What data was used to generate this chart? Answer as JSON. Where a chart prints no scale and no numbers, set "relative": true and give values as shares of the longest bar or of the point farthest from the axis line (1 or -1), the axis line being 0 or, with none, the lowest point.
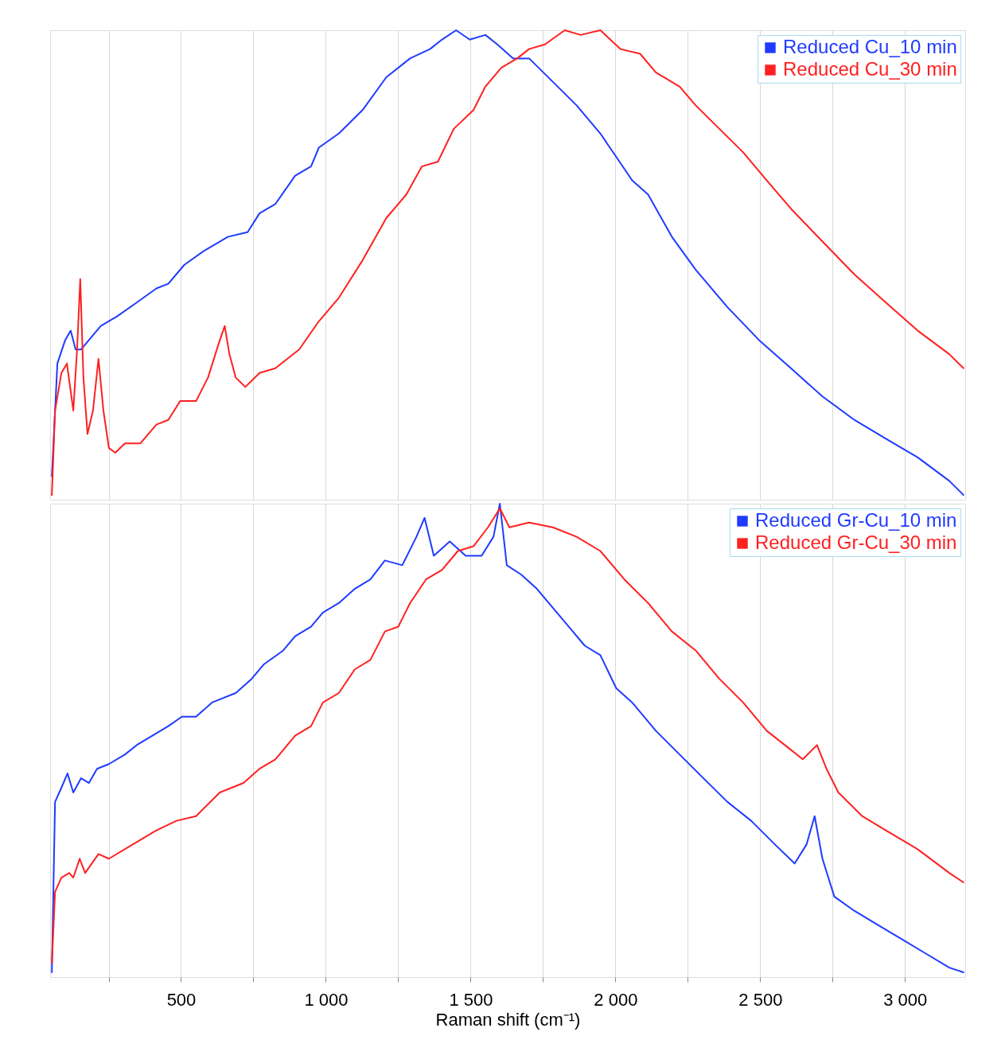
{
  "chart_data": [
    {
      "type": "line",
      "relative": true,
      "xlim": [
        48,
        3208
      ],
      "tick_labels": false,
      "grid": "x",
      "legend": "top right",
      "xticks": [
        250,
        500,
        750,
        1000,
        1250,
        1500,
        1750,
        2000,
        2250,
        2500,
        2750,
        3000
      ],
      "series": [
        {
          "name": "Reduced Cu_10 min",
          "color": "#1f3bff",
          "x": [
            54,
            73,
            100,
            119,
            136,
            155,
            182,
            223,
            278,
            347,
            415,
            456,
            511,
            579,
            662,
            730,
            771,
            826,
            894,
            949,
            976,
            1045,
            1127,
            1209,
            1291,
            1360,
            1401,
            1450,
            1497,
            1551,
            1592,
            1647,
            1702,
            1784,
            1866,
            1948,
            2003,
            2058,
            2113,
            2195,
            2277,
            2387,
            2496,
            2606,
            2715,
            2825,
            2934,
            3044,
            3153,
            3202
          ],
          "values": [
            0.05,
            0.29,
            0.34,
            0.36,
            0.32,
            0.32,
            0.34,
            0.37,
            0.39,
            0.42,
            0.45,
            0.46,
            0.5,
            0.53,
            0.56,
            0.57,
            0.61,
            0.63,
            0.69,
            0.71,
            0.75,
            0.78,
            0.83,
            0.9,
            0.94,
            0.96,
            0.98,
            1.0,
            0.98,
            0.99,
            0.97,
            0.94,
            0.94,
            0.89,
            0.84,
            0.78,
            0.73,
            0.68,
            0.65,
            0.56,
            0.49,
            0.41,
            0.34,
            0.28,
            0.22,
            0.17,
            0.13,
            0.09,
            0.04,
            0.01
          ]
        },
        {
          "name": "Reduced Cu_30 min",
          "color": "#ff2020",
          "x": [
            54,
            65,
            87,
            106,
            128,
            141,
            152,
            163,
            177,
            196,
            215,
            232,
            251,
            273,
            306,
            360,
            415,
            456,
            497,
            552,
            593,
            634,
            651,
            667,
            689,
            722,
            771,
            826,
            908,
            976,
            1045,
            1127,
            1209,
            1278,
            1332,
            1387,
            1442,
            1510,
            1551,
            1606,
            1661,
            1702,
            1757,
            1825,
            1880,
            1948,
            2017,
            2085,
            2140,
            2222,
            2277,
            2359,
            2441,
            2523,
            2606,
            2715,
            2825,
            2934,
            3044,
            3153,
            3202
          ],
          "values": [
            0.01,
            0.19,
            0.27,
            0.29,
            0.19,
            0.32,
            0.47,
            0.26,
            0.14,
            0.19,
            0.3,
            0.19,
            0.11,
            0.1,
            0.12,
            0.12,
            0.16,
            0.17,
            0.21,
            0.21,
            0.26,
            0.34,
            0.37,
            0.31,
            0.26,
            0.24,
            0.27,
            0.28,
            0.32,
            0.38,
            0.43,
            0.51,
            0.6,
            0.65,
            0.71,
            0.72,
            0.79,
            0.83,
            0.88,
            0.92,
            0.94,
            0.96,
            0.97,
            1.0,
            0.99,
            1.0,
            0.96,
            0.95,
            0.91,
            0.88,
            0.84,
            0.79,
            0.74,
            0.68,
            0.62,
            0.55,
            0.48,
            0.42,
            0.36,
            0.31,
            0.28
          ]
        }
      ]
    },
    {
      "type": "line",
      "relative": true,
      "xlim": [
        48,
        3208
      ],
      "tick_labels": "x",
      "grid": "x",
      "legend": "top right",
      "xlabel": "Raman shift (cm⁻¹)",
      "xticks": [
        {
          "value": 250,
          "label": null
        },
        500,
        {
          "value": 750,
          "label": null
        },
        {
          "value": 1000,
          "label": "1 000"
        },
        {
          "value": 1250,
          "label": null
        },
        {
          "value": 1500,
          "label": "1 500"
        },
        {
          "value": 1750,
          "label": null
        },
        {
          "value": 2000,
          "label": "2 000"
        },
        {
          "value": 2250,
          "label": null
        },
        {
          "value": 2500,
          "label": "2 500"
        },
        {
          "value": 2750,
          "label": null
        },
        {
          "value": 3000,
          "label": "3 000"
        }
      ],
      "series": [
        {
          "name": "Reduced Gr-Cu_10 min",
          "color": "#1f3bff",
          "x": [
            54,
            65,
            87,
            108,
            128,
            155,
            182,
            210,
            251,
            306,
            347,
            401,
            456,
            503,
            552,
            607,
            689,
            744,
            785,
            853,
            894,
            949,
            990,
            1045,
            1100,
            1154,
            1204,
            1264,
            1313,
            1341,
            1373,
            1428,
            1483,
            1538,
            1579,
            1601,
            1625,
            1675,
            1729,
            1784,
            1839,
            1894,
            1948,
            2003,
            2058,
            2140,
            2222,
            2304,
            2387,
            2469,
            2551,
            2619,
            2660,
            2688,
            2715,
            2756,
            2825,
            2907,
            2989,
            3071,
            3153,
            3202
          ],
          "values": [
            0.01,
            0.37,
            0.4,
            0.43,
            0.39,
            0.42,
            0.41,
            0.44,
            0.45,
            0.47,
            0.49,
            0.51,
            0.53,
            0.55,
            0.55,
            0.58,
            0.6,
            0.63,
            0.66,
            0.69,
            0.72,
            0.74,
            0.77,
            0.79,
            0.82,
            0.84,
            0.88,
            0.87,
            0.93,
            0.97,
            0.89,
            0.92,
            0.89,
            0.89,
            0.93,
            1.0,
            0.87,
            0.85,
            0.82,
            0.78,
            0.74,
            0.7,
            0.68,
            0.61,
            0.58,
            0.52,
            0.47,
            0.42,
            0.37,
            0.33,
            0.28,
            0.24,
            0.28,
            0.34,
            0.25,
            0.17,
            0.14,
            0.11,
            0.08,
            0.05,
            0.02,
            0.01
          ]
        },
        {
          "name": "Reduced Gr-Cu_30 min",
          "color": "#ff2020",
          "x": [
            54,
            65,
            87,
            114,
            128,
            150,
            169,
            215,
            251,
            333,
            415,
            484,
            552,
            634,
            716,
            771,
            826,
            894,
            949,
            990,
            1045,
            1100,
            1154,
            1204,
            1250,
            1291,
            1346,
            1401,
            1456,
            1510,
            1560,
            1601,
            1634,
            1702,
            1784,
            1866,
            1948,
            2031,
            2113,
            2195,
            2277,
            2359,
            2441,
            2523,
            2606,
            2647,
            2696,
            2729,
            2770,
            2852,
            2934,
            3044,
            3153,
            3202
          ],
          "values": [
            0.03,
            0.18,
            0.21,
            0.22,
            0.21,
            0.25,
            0.22,
            0.26,
            0.25,
            0.28,
            0.31,
            0.33,
            0.34,
            0.39,
            0.41,
            0.44,
            0.46,
            0.51,
            0.53,
            0.58,
            0.6,
            0.65,
            0.67,
            0.73,
            0.74,
            0.79,
            0.84,
            0.86,
            0.9,
            0.91,
            0.95,
            0.99,
            0.95,
            0.96,
            0.95,
            0.93,
            0.9,
            0.84,
            0.79,
            0.73,
            0.69,
            0.63,
            0.58,
            0.52,
            0.48,
            0.46,
            0.49,
            0.44,
            0.39,
            0.34,
            0.31,
            0.27,
            0.22,
            0.2
          ]
        }
      ]
    }
  ]
}
